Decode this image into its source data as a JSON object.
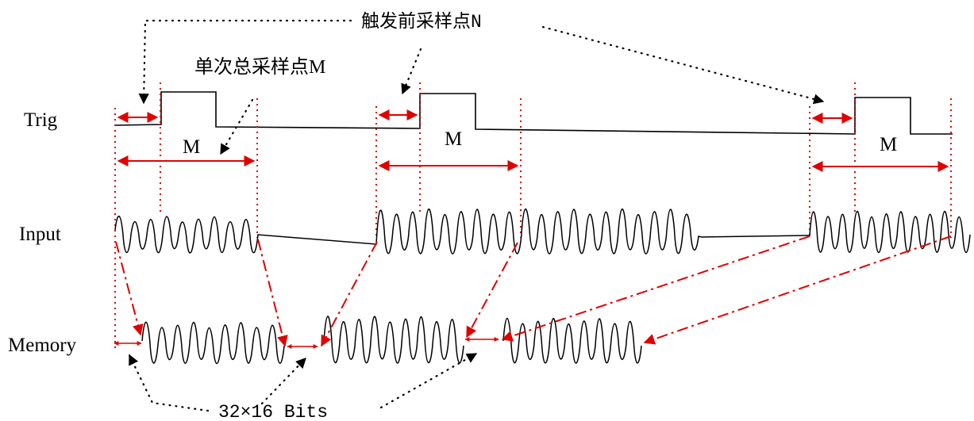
{
  "labels": {
    "trig": "Trig",
    "input": "Input",
    "memory": "Memory",
    "pre_trigger": "触发前采样点N",
    "total_samples": "单次总采样点M",
    "m": "M",
    "bits": "32×16 Bits"
  },
  "colors": {
    "line": "#000000",
    "marker": "#e00000",
    "background": "#ffffff"
  }
}
